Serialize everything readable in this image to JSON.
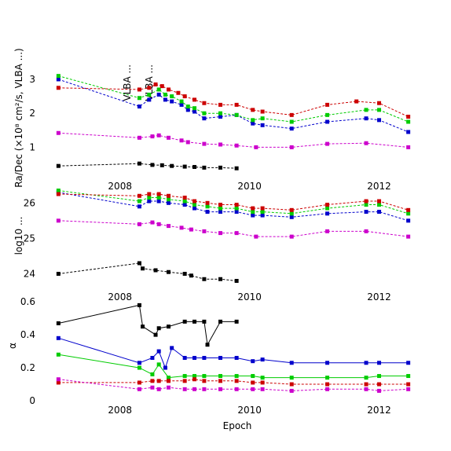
{
  "figure": {
    "xlabel": "Epoch",
    "ylabel_top": "Ra/Dec (×10⁸ cm²/s, VLBA ...)",
    "ylabel_mid": "log10 ...",
    "ylabel_bot": "α",
    "vertical_annotations": [
      "VLBA ...",
      "VLBA ..."
    ]
  },
  "colors": {
    "black": "#000000",
    "blue": "#0000cc",
    "green": "#00cc00",
    "red": "#cc0000",
    "magenta": "#cc00cc"
  },
  "chart_data": [
    {
      "type": "scatter",
      "panel": "top",
      "xlim": [
        2006.9,
        2012.6
      ],
      "ylim": [
        0.2,
        3.3
      ],
      "x_ticks": [
        2008,
        2010,
        2012
      ],
      "x_tick_labels": [
        "2008",
        "2010",
        "2012"
      ],
      "y_ticks": [
        1,
        2,
        3
      ],
      "y_tick_labels": [
        "1",
        "2",
        "3"
      ],
      "grid": false,
      "series": [
        {
          "color": "black",
          "linestyle": "dashed",
          "x": [
            2007.05,
            2008.3,
            2008.5,
            2008.65,
            2008.8,
            2009.0,
            2009.15,
            2009.3,
            2009.55,
            2009.8
          ],
          "y": [
            0.45,
            0.52,
            0.48,
            0.47,
            0.45,
            0.43,
            0.42,
            0.4,
            0.4,
            0.38
          ]
        },
        {
          "color": "blue",
          "linestyle": "dashed",
          "x": [
            2007.05,
            2008.3,
            2008.45,
            2008.6,
            2008.7,
            2008.8,
            2008.95,
            2009.05,
            2009.15,
            2009.3,
            2009.55,
            2009.8,
            2010.05,
            2010.2,
            2010.65,
            2011.2,
            2011.8,
            2012.0,
            2012.45
          ],
          "y": [
            3.0,
            2.2,
            2.4,
            2.55,
            2.4,
            2.35,
            2.25,
            2.1,
            2.05,
            1.85,
            1.9,
            1.95,
            1.7,
            1.65,
            1.55,
            1.75,
            1.85,
            1.8,
            1.45
          ]
        },
        {
          "color": "green",
          "linestyle": "dashed",
          "x": [
            2007.05,
            2008.3,
            2008.45,
            2008.6,
            2008.7,
            2008.8,
            2008.95,
            2009.05,
            2009.15,
            2009.3,
            2009.55,
            2009.8,
            2010.05,
            2010.2,
            2010.65,
            2011.2,
            2011.8,
            2012.0,
            2012.45
          ],
          "y": [
            3.1,
            2.45,
            2.55,
            2.7,
            2.55,
            2.5,
            2.35,
            2.2,
            2.15,
            2.0,
            2.0,
            1.95,
            1.8,
            1.85,
            1.75,
            1.95,
            2.1,
            2.1,
            1.75
          ]
        },
        {
          "color": "red",
          "linestyle": "dashed",
          "x": [
            2007.05,
            2008.3,
            2008.45,
            2008.55,
            2008.65,
            2008.75,
            2008.9,
            2009.0,
            2009.15,
            2009.3,
            2009.55,
            2009.8,
            2010.05,
            2010.2,
            2010.65,
            2011.2,
            2011.65,
            2012.0,
            2012.45
          ],
          "y": [
            2.75,
            2.7,
            2.75,
            2.85,
            2.8,
            2.7,
            2.6,
            2.5,
            2.4,
            2.3,
            2.25,
            2.25,
            2.1,
            2.05,
            1.95,
            2.25,
            2.35,
            2.3,
            1.9
          ]
        },
        {
          "color": "magenta",
          "linestyle": "dashed",
          "x": [
            2007.05,
            2008.3,
            2008.5,
            2008.6,
            2008.75,
            2008.95,
            2009.05,
            2009.3,
            2009.55,
            2009.8,
            2010.1,
            2010.65,
            2011.2,
            2011.8,
            2012.45
          ],
          "y": [
            1.42,
            1.28,
            1.32,
            1.35,
            1.28,
            1.2,
            1.15,
            1.1,
            1.08,
            1.05,
            1.0,
            1.0,
            1.1,
            1.12,
            1.0
          ]
        }
      ]
    },
    {
      "type": "scatter",
      "panel": "middle",
      "xlim": [
        2006.9,
        2012.6
      ],
      "ylim": [
        23.7,
        26.45
      ],
      "x_ticks": [
        2008,
        2010,
        2012
      ],
      "x_tick_labels": [
        "2008",
        "2010",
        "2012"
      ],
      "y_ticks": [
        24,
        25,
        26
      ],
      "y_tick_labels": [
        "24",
        "25",
        "26"
      ],
      "grid": false,
      "series": [
        {
          "color": "black",
          "linestyle": "dashed",
          "x": [
            2007.05,
            2008.3,
            2008.35,
            2008.55,
            2008.75,
            2009.0,
            2009.1,
            2009.3,
            2009.55,
            2009.8
          ],
          "y": [
            24.0,
            24.3,
            24.15,
            24.1,
            24.05,
            24.0,
            23.95,
            23.85,
            23.85,
            23.8
          ]
        },
        {
          "color": "blue",
          "linestyle": "dashed",
          "x": [
            2007.05,
            2008.3,
            2008.45,
            2008.6,
            2008.75,
            2009.0,
            2009.15,
            2009.35,
            2009.55,
            2009.8,
            2010.05,
            2010.2,
            2010.65,
            2011.2,
            2011.8,
            2012.0,
            2012.45
          ],
          "y": [
            26.3,
            25.9,
            26.05,
            26.05,
            26.0,
            25.95,
            25.85,
            25.75,
            25.75,
            25.75,
            25.65,
            25.65,
            25.6,
            25.7,
            25.75,
            25.75,
            25.5
          ]
        },
        {
          "color": "green",
          "linestyle": "dashed",
          "x": [
            2007.05,
            2008.3,
            2008.45,
            2008.6,
            2008.75,
            2009.0,
            2009.15,
            2009.35,
            2009.55,
            2009.8,
            2010.05,
            2010.2,
            2010.65,
            2011.2,
            2011.8,
            2012.0,
            2012.45
          ],
          "y": [
            26.35,
            26.05,
            26.15,
            26.15,
            26.1,
            26.05,
            25.95,
            25.9,
            25.85,
            25.85,
            25.75,
            25.75,
            25.7,
            25.85,
            25.95,
            25.95,
            25.7
          ]
        },
        {
          "color": "red",
          "linestyle": "dashed",
          "x": [
            2007.05,
            2008.3,
            2008.45,
            2008.6,
            2008.75,
            2009.0,
            2009.15,
            2009.35,
            2009.55,
            2009.8,
            2010.05,
            2010.2,
            2010.65,
            2011.2,
            2011.8,
            2012.0,
            2012.45
          ],
          "y": [
            26.25,
            26.2,
            26.25,
            26.25,
            26.2,
            26.15,
            26.05,
            26.0,
            25.95,
            25.95,
            25.85,
            25.85,
            25.8,
            25.95,
            26.05,
            26.05,
            25.8
          ]
        },
        {
          "color": "magenta",
          "linestyle": "dashed",
          "x": [
            2007.05,
            2008.3,
            2008.5,
            2008.6,
            2008.75,
            2008.95,
            2009.1,
            2009.3,
            2009.55,
            2009.8,
            2010.1,
            2010.65,
            2011.2,
            2011.8,
            2012.45
          ],
          "y": [
            25.5,
            25.4,
            25.45,
            25.4,
            25.35,
            25.3,
            25.25,
            25.2,
            25.15,
            25.15,
            25.05,
            25.05,
            25.2,
            25.2,
            25.05
          ]
        }
      ]
    },
    {
      "type": "scatter",
      "panel": "bottom",
      "xlim": [
        2006.9,
        2012.6
      ],
      "ylim": [
        0.0,
        0.62
      ],
      "x_ticks": [
        2008,
        2010,
        2012
      ],
      "x_tick_labels": [
        "2008",
        "2010",
        "2012"
      ],
      "y_ticks": [
        0,
        0.2,
        0.4,
        0.6
      ],
      "y_tick_labels": [
        "0",
        "0.2",
        "0.4",
        "0.6"
      ],
      "grid": false,
      "series": [
        {
          "color": "black",
          "linestyle": "solid",
          "x": [
            2007.05,
            2008.3,
            2008.35,
            2008.55,
            2008.6,
            2008.75,
            2009.0,
            2009.15,
            2009.3,
            2009.35,
            2009.55,
            2009.8
          ],
          "y": [
            0.47,
            0.58,
            0.45,
            0.4,
            0.44,
            0.45,
            0.48,
            0.48,
            0.48,
            0.34,
            0.48,
            0.48
          ]
        },
        {
          "color": "blue",
          "linestyle": "solid",
          "x": [
            2007.05,
            2008.3,
            2008.5,
            2008.6,
            2008.7,
            2008.8,
            2009.0,
            2009.15,
            2009.3,
            2009.55,
            2009.8,
            2010.05,
            2010.2,
            2010.65,
            2011.2,
            2011.8,
            2012.0,
            2012.45
          ],
          "y": [
            0.38,
            0.23,
            0.26,
            0.3,
            0.2,
            0.32,
            0.26,
            0.26,
            0.26,
            0.26,
            0.26,
            0.24,
            0.25,
            0.23,
            0.23,
            0.23,
            0.23,
            0.23
          ]
        },
        {
          "color": "green",
          "linestyle": "solid",
          "x": [
            2007.05,
            2008.3,
            2008.5,
            2008.6,
            2008.75,
            2009.0,
            2009.15,
            2009.3,
            2009.55,
            2009.8,
            2010.05,
            2010.2,
            2010.65,
            2011.2,
            2011.8,
            2012.0,
            2012.45
          ],
          "y": [
            0.28,
            0.2,
            0.16,
            0.22,
            0.14,
            0.15,
            0.15,
            0.15,
            0.15,
            0.15,
            0.15,
            0.14,
            0.14,
            0.14,
            0.14,
            0.15,
            0.15
          ]
        },
        {
          "color": "red",
          "linestyle": "dashed",
          "x": [
            2007.05,
            2008.3,
            2008.5,
            2008.6,
            2008.75,
            2009.0,
            2009.15,
            2009.3,
            2009.55,
            2009.8,
            2010.05,
            2010.2,
            2010.65,
            2011.2,
            2011.8,
            2012.0,
            2012.45
          ],
          "y": [
            0.11,
            0.11,
            0.12,
            0.12,
            0.12,
            0.12,
            0.13,
            0.12,
            0.12,
            0.12,
            0.11,
            0.11,
            0.1,
            0.1,
            0.1,
            0.1,
            0.1
          ]
        },
        {
          "color": "magenta",
          "linestyle": "dashed",
          "x": [
            2007.05,
            2008.3,
            2008.5,
            2008.6,
            2008.75,
            2009.0,
            2009.15,
            2009.3,
            2009.55,
            2009.8,
            2010.05,
            2010.2,
            2010.65,
            2011.2,
            2011.8,
            2012.0,
            2012.45
          ],
          "y": [
            0.13,
            0.07,
            0.08,
            0.07,
            0.08,
            0.07,
            0.07,
            0.07,
            0.07,
            0.07,
            0.07,
            0.07,
            0.06,
            0.07,
            0.07,
            0.06,
            0.07
          ]
        }
      ]
    }
  ]
}
